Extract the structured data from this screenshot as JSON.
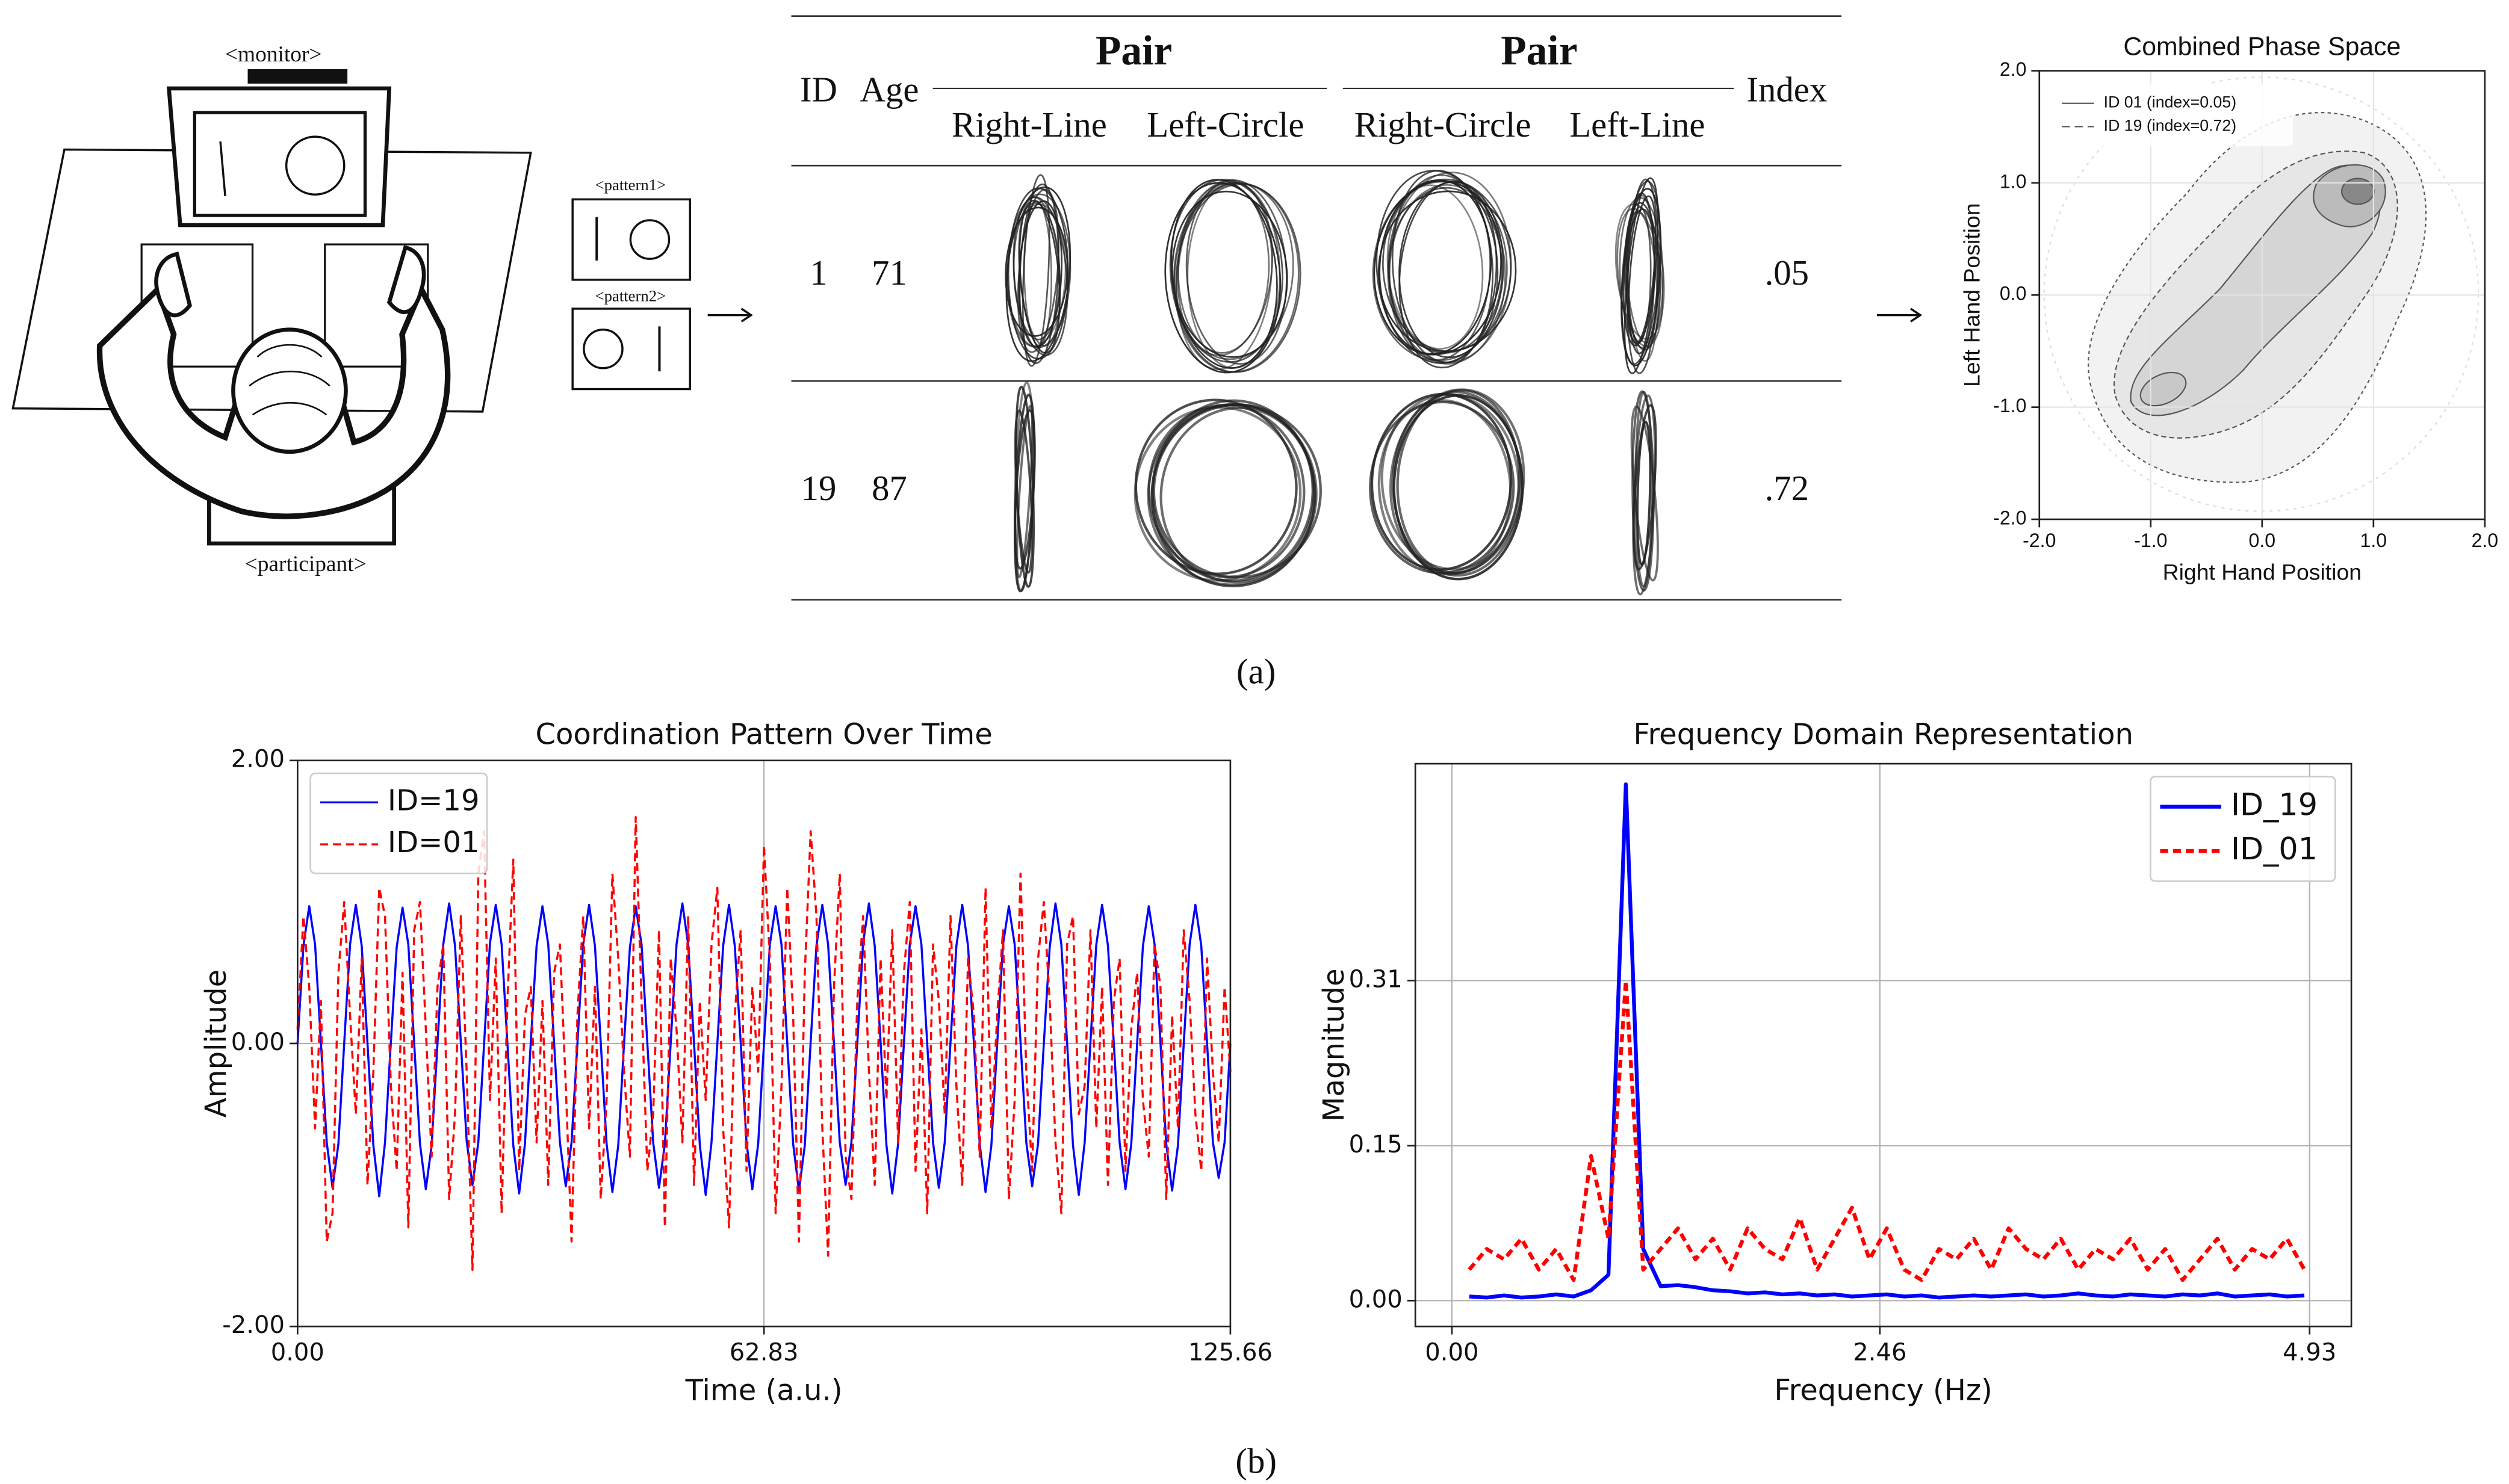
{
  "diagram": {
    "monitor": "<monitor>",
    "pattern1": "<pattern1>",
    "pattern2": "<pattern2>",
    "participant": "<participant>"
  },
  "table": {
    "headers": {
      "id": "ID",
      "age": "Age",
      "pair_1": "Pair",
      "pair_1_left": "Right-Line",
      "pair_1_right": "Left-Circle",
      "pair_2": "Pair",
      "pair_2_left": "Right-Circle",
      "pair_2_right": "Left-Line",
      "index": "Index"
    },
    "rows": [
      [
        "1",
        "71",
        ".05"
      ],
      [
        "19",
        "87",
        ".72"
      ]
    ]
  },
  "captions": [
    "(a)",
    "(b)"
  ],
  "chart_data": [
    {
      "type": "contour",
      "title": "Combined Phase Space",
      "xlabel": "Right Hand Position",
      "ylabel": "Left Hand Position",
      "xlim": [
        -2,
        2
      ],
      "ylim": [
        -2,
        2
      ],
      "xticks": [
        {
          "value": -2,
          "label": "-2.0"
        },
        {
          "value": -1,
          "label": "-1.0"
        },
        {
          "value": 0,
          "label": "0.0"
        },
        {
          "value": 1,
          "label": "1.0"
        },
        {
          "value": 2,
          "label": "2.0"
        }
      ],
      "yticks": [
        {
          "value": -2,
          "label": "-2.0"
        },
        {
          "value": -1,
          "label": "-1.0"
        },
        {
          "value": 0,
          "label": "0.0"
        },
        {
          "value": 1,
          "label": "1.0"
        },
        {
          "value": 2,
          "label": "2.0"
        }
      ],
      "grid": true,
      "legend": "upper left",
      "series": [
        {
          "name": "ID 01 (index=0.05)",
          "color": "#555555",
          "linestyle": "solid"
        },
        {
          "name": "ID 19 (index=0.72)",
          "color": "#555555",
          "linestyle": "dashed"
        }
      ]
    },
    {
      "type": "line",
      "title": "Coordination Pattern Over Time",
      "xlabel": "Time (a.u.)",
      "ylabel": "Amplitude",
      "xlim": [
        0,
        125.66
      ],
      "ylim": [
        -2,
        2
      ],
      "xticks": [
        {
          "value": 0,
          "label": "0.00"
        },
        62.83,
        125.66
      ],
      "yticks": [
        {
          "value": -2,
          "label": "-2.00"
        },
        {
          "value": 0,
          "label": "0.00"
        },
        {
          "value": 2,
          "label": "2.00"
        }
      ],
      "grid": true,
      "legend": "upper left",
      "x": [
        0,
        0.79,
        1.57,
        2.36,
        3.14,
        3.93,
        4.71,
        5.5,
        6.28,
        7.07,
        7.85,
        8.64,
        9.42,
        10.21,
        11.0,
        11.78,
        12.57,
        13.35,
        14.14,
        14.92,
        15.71,
        16.49,
        17.28,
        18.06,
        18.85,
        19.63,
        20.42,
        21.21,
        21.99,
        22.78,
        23.56,
        24.35,
        25.13,
        25.92,
        26.7,
        27.49,
        28.27,
        29.06,
        29.85,
        30.63,
        31.42,
        32.2,
        32.99,
        33.77,
        34.56,
        35.34,
        36.13,
        36.91,
        37.7,
        38.48,
        39.27,
        40.06,
        40.84,
        41.63,
        42.41,
        43.2,
        43.98,
        44.77,
        45.55,
        46.34,
        47.12,
        47.91,
        48.69,
        49.48,
        50.27,
        51.05,
        51.84,
        52.62,
        53.41,
        54.19,
        54.98,
        55.76,
        56.55,
        57.33,
        58.12,
        58.9,
        59.69,
        60.48,
        61.26,
        62.05,
        62.83,
        63.62,
        64.4,
        65.19,
        65.97,
        66.76,
        67.54,
        68.33,
        69.12,
        69.9,
        70.69,
        71.47,
        72.26,
        73.04,
        73.83,
        74.61,
        75.4,
        76.18,
        76.97,
        77.75,
        78.54,
        79.33,
        80.11,
        80.9,
        81.68,
        82.47,
        83.25,
        84.04,
        84.82,
        85.61,
        86.39,
        87.18,
        87.96,
        88.75,
        89.54,
        90.32,
        91.11,
        91.89,
        92.68,
        93.46,
        94.25,
        95.03,
        95.82,
        96.6,
        97.39,
        98.17,
        98.96,
        99.75,
        100.53,
        101.32,
        102.1,
        102.89,
        103.67,
        104.46,
        105.24,
        106.03,
        106.81,
        107.6,
        108.38,
        109.17,
        109.96,
        110.74,
        111.53,
        112.31,
        113.1,
        113.88,
        114.67,
        115.45,
        116.24,
        117.02,
        117.81,
        118.6,
        119.38,
        120.17,
        120.95,
        121.74,
        122.52,
        123.31,
        124.09,
        124.88,
        125.66
      ],
      "series": [
        {
          "name": "ID=19",
          "color": "#0000ff",
          "linestyle": "solid",
          "values": [
            0,
            0.69,
            0.97,
            0.7,
            0.01,
            -0.7,
            -1.02,
            -0.71,
            0,
            0.7,
            0.98,
            0.69,
            0,
            -0.72,
            -1.08,
            -0.7,
            0.01,
            0.68,
            0.96,
            0.7,
            0,
            -0.71,
            -1.03,
            -0.72,
            0,
            0.7,
            0.99,
            0.69,
            0.01,
            -0.69,
            -1.0,
            -0.7,
            0,
            0.71,
            0.98,
            0.7,
            0,
            -0.72,
            -1.06,
            -0.71,
            0.01,
            0.69,
            0.97,
            0.7,
            0,
            -0.7,
            -1.01,
            -0.7,
            0,
            0.7,
            0.98,
            0.69,
            0.01,
            -0.71,
            -1.05,
            -0.72,
            0,
            0.68,
            0.97,
            0.7,
            0,
            -0.7,
            -1.02,
            -0.71,
            0.01,
            0.7,
            0.99,
            0.7,
            0,
            -0.72,
            -1.07,
            -0.7,
            0,
            0.69,
            0.98,
            0.69,
            0.01,
            -0.7,
            -1.03,
            -0.71,
            0,
            0.7,
            0.97,
            0.7,
            0,
            -0.71,
            -1.04,
            -0.72,
            0.01,
            0.69,
            0.98,
            0.7,
            0,
            -0.7,
            -1.0,
            -0.7,
            0,
            0.71,
            0.99,
            0.69,
            0.01,
            -0.72,
            -1.06,
            -0.71,
            0,
            0.7,
            0.97,
            0.7,
            0,
            -0.7,
            -1.02,
            -0.7,
            0.01,
            0.69,
            0.98,
            0.69,
            0,
            -0.71,
            -1.05,
            -0.72,
            0,
            0.7,
            0.97,
            0.7,
            0.01,
            -0.7,
            -1.01,
            -0.71,
            0,
            0.68,
            0.99,
            0.7,
            0,
            -0.72,
            -1.07,
            -0.7,
            0.01,
            0.7,
            0.98,
            0.69,
            0,
            -0.7,
            -1.03,
            -0.71,
            0,
            0.69,
            0.97,
            0.7,
            0.01,
            -0.71,
            -1.04,
            -0.72,
            0,
            0.7,
            0.98,
            0.69,
            0,
            -0.7,
            -0.95,
            -0.7,
            0
          ]
        },
        {
          "name": "ID=01",
          "color": "#ff0000",
          "linestyle": "dashed",
          "values": [
            0.1,
            0.9,
            0.4,
            -0.6,
            0.3,
            -1.4,
            -1.2,
            0.5,
            1.0,
            0.2,
            -0.5,
            0.6,
            -1.0,
            -0.2,
            1.1,
            0.9,
            -0.3,
            -0.9,
            0.5,
            -1.3,
            0.8,
            1.0,
            0.1,
            -0.8,
            0.4,
            0.7,
            -1.1,
            -0.5,
            0.9,
            -0.2,
            -1.6,
            1.2,
            1.5,
            -0.4,
            0.6,
            -1.2,
            0.3,
            1.3,
            -0.9,
            0.2,
            0.4,
            -0.7,
            0.3,
            -1.0,
            0.5,
            0.7,
            -0.3,
            -1.4,
            0.2,
            0.9,
            -0.6,
            0.4,
            -1.1,
            -0.4,
            1.2,
            0.6,
            -0.2,
            -0.8,
            1.6,
            0.3,
            -0.9,
            -0.5,
            0.8,
            -1.3,
            0.6,
            0.1,
            -0.7,
            0.9,
            -1.0,
            0.3,
            -0.4,
            0.7,
            1.1,
            -0.6,
            -1.3,
            0.2,
            0.8,
            -0.9,
            0.4,
            -0.2,
            1.4,
            0.6,
            -1.2,
            -0.3,
            1.1,
            0.2,
            -1.4,
            0.5,
            1.5,
            0.9,
            -0.6,
            -1.5,
            0.4,
            1.2,
            -0.8,
            -1.1,
            0.3,
            0.9,
            -0.2,
            -1.0,
            0.6,
            -0.4,
            0.8,
            -0.7,
            0.5,
            1.0,
            -0.9,
            0.1,
            -1.2,
            0.7,
            0.3,
            -0.5,
            0.9,
            -0.3,
            -1.0,
            0.6,
            0.2,
            -0.8,
            1.1,
            -0.6,
            0.2,
            0.8,
            -1.1,
            -0.4,
            1.2,
            -0.2,
            -0.9,
            0.6,
            1.0,
            0.3,
            -0.7,
            -1.2,
            0.7,
            0.9,
            -0.5,
            -0.3,
            0.8,
            -0.6,
            0.4,
            -1.0,
            0.3,
            0.6,
            -0.9,
            0.1,
            0.5,
            -0.4,
            -0.8,
            0.7,
            0.4,
            -1.1,
            0.2,
            -0.6,
            0.8,
            0.3,
            -0.5,
            -0.9,
            0.6,
            -0.2,
            -0.7,
            0.4,
            -0.2
          ]
        }
      ]
    },
    {
      "type": "line",
      "title": "Frequency Domain Representation",
      "xlabel": "Frequency (Hz)",
      "ylabel": "Magnitude",
      "xlim": [
        -0.21,
        5.17
      ],
      "ylim": [
        -0.025,
        0.52
      ],
      "xticks": [
        {
          "value": 0,
          "label": "0.00"
        },
        2.46,
        4.93
      ],
      "yticks": [
        {
          "value": 0,
          "label": "0.00"
        },
        0.15,
        0.31
      ],
      "grid": true,
      "legend": "upper right",
      "x": [
        0.1,
        0.2,
        0.3,
        0.4,
        0.5,
        0.6,
        0.7,
        0.8,
        0.9,
        1.0,
        1.1,
        1.2,
        1.3,
        1.4,
        1.5,
        1.6,
        1.7,
        1.8,
        1.9,
        2.0,
        2.1,
        2.2,
        2.3,
        2.4,
        2.5,
        2.6,
        2.7,
        2.8,
        2.9,
        3.0,
        3.1,
        3.2,
        3.3,
        3.4,
        3.5,
        3.6,
        3.7,
        3.8,
        3.9,
        4.0,
        4.1,
        4.2,
        4.3,
        4.4,
        4.5,
        4.6,
        4.7,
        4.8,
        4.9
      ],
      "series": [
        {
          "name": "ID_19",
          "color": "#0000ff",
          "linestyle": "solid",
          "values": [
            0.004,
            0.003,
            0.005,
            0.003,
            0.004,
            0.006,
            0.004,
            0.01,
            0.025,
            0.5,
            0.05,
            0.014,
            0.015,
            0.013,
            0.01,
            0.009,
            0.007,
            0.008,
            0.006,
            0.007,
            0.005,
            0.006,
            0.004,
            0.005,
            0.006,
            0.004,
            0.005,
            0.003,
            0.004,
            0.005,
            0.004,
            0.005,
            0.006,
            0.004,
            0.005,
            0.007,
            0.005,
            0.004,
            0.006,
            0.005,
            0.004,
            0.006,
            0.005,
            0.007,
            0.004,
            0.005,
            0.006,
            0.004,
            0.005
          ]
        },
        {
          "name": "ID_01",
          "color": "#ff0000",
          "linestyle": "dashed",
          "values": [
            0.03,
            0.05,
            0.04,
            0.06,
            0.03,
            0.05,
            0.02,
            0.14,
            0.06,
            0.31,
            0.03,
            0.05,
            0.07,
            0.04,
            0.06,
            0.03,
            0.07,
            0.05,
            0.04,
            0.08,
            0.03,
            0.06,
            0.09,
            0.04,
            0.07,
            0.03,
            0.02,
            0.05,
            0.04,
            0.06,
            0.03,
            0.07,
            0.05,
            0.04,
            0.06,
            0.03,
            0.05,
            0.04,
            0.06,
            0.03,
            0.05,
            0.02,
            0.04,
            0.06,
            0.03,
            0.05,
            0.04,
            0.06,
            0.03
          ]
        }
      ]
    }
  ]
}
